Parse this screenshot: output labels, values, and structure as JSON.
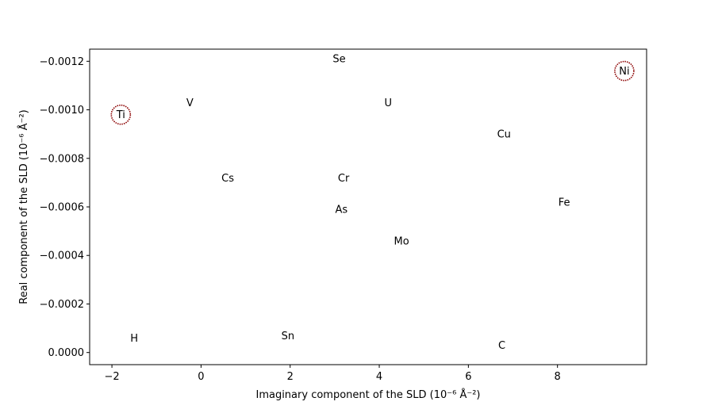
{
  "chart_data": {
    "type": "scatter",
    "title": "",
    "xlabel": "Imaginary component of the SLD (10⁻⁶ Å⁻²)",
    "ylabel": "Real component of the SLD (10⁻⁶ Å⁻²)",
    "xlim": [
      -2.5,
      10.0
    ],
    "ylim": [
      5e-05,
      -0.00125
    ],
    "y_inverted": true,
    "grid": false,
    "legend": "none",
    "x_ticks": [
      {
        "value": -2,
        "label": "−2"
      },
      {
        "value": 0,
        "label": "0"
      },
      {
        "value": 2,
        "label": "2"
      },
      {
        "value": 4,
        "label": "4"
      },
      {
        "value": 6,
        "label": "6"
      },
      {
        "value": 8,
        "label": "8"
      }
    ],
    "y_ticks": [
      {
        "value": -0.0012,
        "label": "−0.0012"
      },
      {
        "value": -0.001,
        "label": "−0.0010"
      },
      {
        "value": -0.0008,
        "label": "−0.0008"
      },
      {
        "value": -0.0006,
        "label": "−0.0006"
      },
      {
        "value": -0.0004,
        "label": "−0.0004"
      },
      {
        "value": -0.0002,
        "label": "−0.0002"
      },
      {
        "value": 0.0,
        "label": "0.0000"
      }
    ],
    "points": [
      {
        "label": "Se",
        "x": 3.1,
        "y": -0.00121,
        "highlighted": false
      },
      {
        "label": "Ni",
        "x": 9.5,
        "y": -0.00116,
        "highlighted": true
      },
      {
        "label": "V",
        "x": -0.25,
        "y": -0.00103,
        "highlighted": false
      },
      {
        "label": "U",
        "x": 4.2,
        "y": -0.00103,
        "highlighted": false
      },
      {
        "label": "Ti",
        "x": -1.8,
        "y": -0.00098,
        "highlighted": true
      },
      {
        "label": "Cu",
        "x": 6.8,
        "y": -0.0009,
        "highlighted": false
      },
      {
        "label": "Cs",
        "x": 0.6,
        "y": -0.00072,
        "highlighted": false
      },
      {
        "label": "Cr",
        "x": 3.2,
        "y": -0.00072,
        "highlighted": false
      },
      {
        "label": "Fe",
        "x": 8.15,
        "y": -0.00062,
        "highlighted": false
      },
      {
        "label": "As",
        "x": 3.15,
        "y": -0.00059,
        "highlighted": false
      },
      {
        "label": "Mo",
        "x": 4.5,
        "y": -0.00046,
        "highlighted": false
      },
      {
        "label": "Sn",
        "x": 1.95,
        "y": -7e-05,
        "highlighted": false
      },
      {
        "label": "H",
        "x": -1.5,
        "y": -6e-05,
        "highlighted": false
      },
      {
        "label": "C",
        "x": 6.75,
        "y": -3e-05,
        "highlighted": false
      }
    ],
    "colors": {
      "axis": "#000000",
      "text": "#000000",
      "highlight_ring": "#8b0000"
    }
  }
}
